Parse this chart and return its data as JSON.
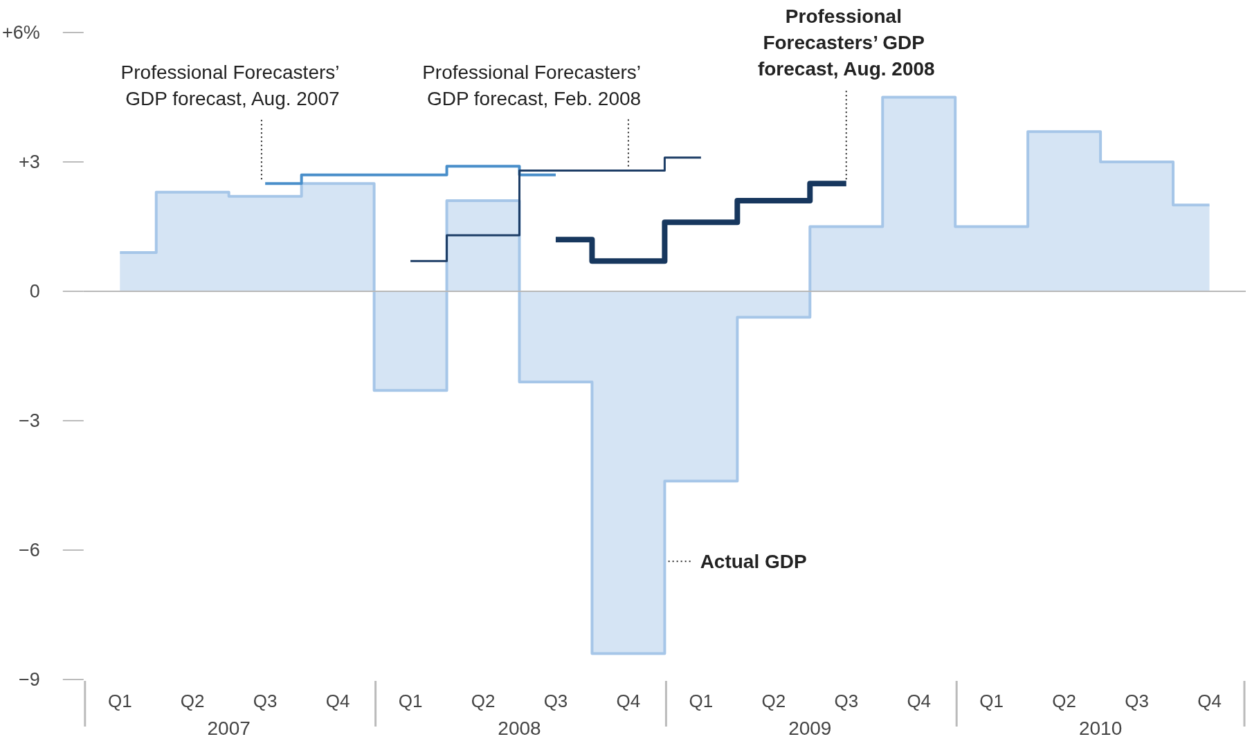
{
  "chart_data": {
    "type": "step",
    "categories": [
      "Q1",
      "Q2",
      "Q3",
      "Q4",
      "Q1",
      "Q2",
      "Q3",
      "Q4",
      "Q1",
      "Q2",
      "Q3",
      "Q4",
      "Q1",
      "Q2",
      "Q3",
      "Q4"
    ],
    "annotations": [
      "2007",
      "2008",
      "2009",
      "2010"
    ],
    "ylim": [
      -9,
      6
    ],
    "yticks": [
      {
        "value": -9,
        "label": "−9"
      },
      {
        "value": -6,
        "label": "−6"
      },
      {
        "value": -3,
        "label": "−3"
      },
      0,
      {
        "value": 3,
        "label": "+3"
      },
      {
        "value": 6,
        "label": "+6%"
      }
    ],
    "ref_lines": [
      {
        "axis": "y",
        "value": 0,
        "color": "#b8b8b8"
      }
    ],
    "grid": false,
    "series": [
      {
        "name": "Actual GDP",
        "type": "area",
        "color": "#d5e4f4",
        "values": [
          0.9,
          2.3,
          2.2,
          2.5,
          -2.3,
          2.1,
          -2.1,
          -8.4,
          -4.4,
          -0.6,
          1.5,
          4.5,
          1.5,
          3.7,
          3.0,
          2.0
        ]
      },
      {
        "name": "Professional Forecasters’ GDP forecast, Aug. 2007",
        "color": "#4a8fca",
        "values": [
          null,
          null,
          2.5,
          2.7,
          2.7,
          2.9,
          2.7,
          null,
          null,
          null,
          null,
          null,
          null,
          null,
          null,
          null
        ]
      },
      {
        "name": "Professional Forecasters’ GDP forecast, Feb. 2008",
        "color": "#1d3d66",
        "values": [
          null,
          null,
          null,
          null,
          0.7,
          1.3,
          2.8,
          2.8,
          3.1,
          null,
          null,
          null,
          null,
          null,
          null,
          null
        ]
      },
      {
        "name": "Professional Forecasters’ GDP forecast, Aug. 2008",
        "color": "#17375e",
        "values": [
          null,
          null,
          null,
          null,
          null,
          null,
          1.2,
          0.7,
          1.6,
          2.1,
          2.5,
          null,
          null,
          null,
          null,
          null
        ]
      }
    ]
  }
}
